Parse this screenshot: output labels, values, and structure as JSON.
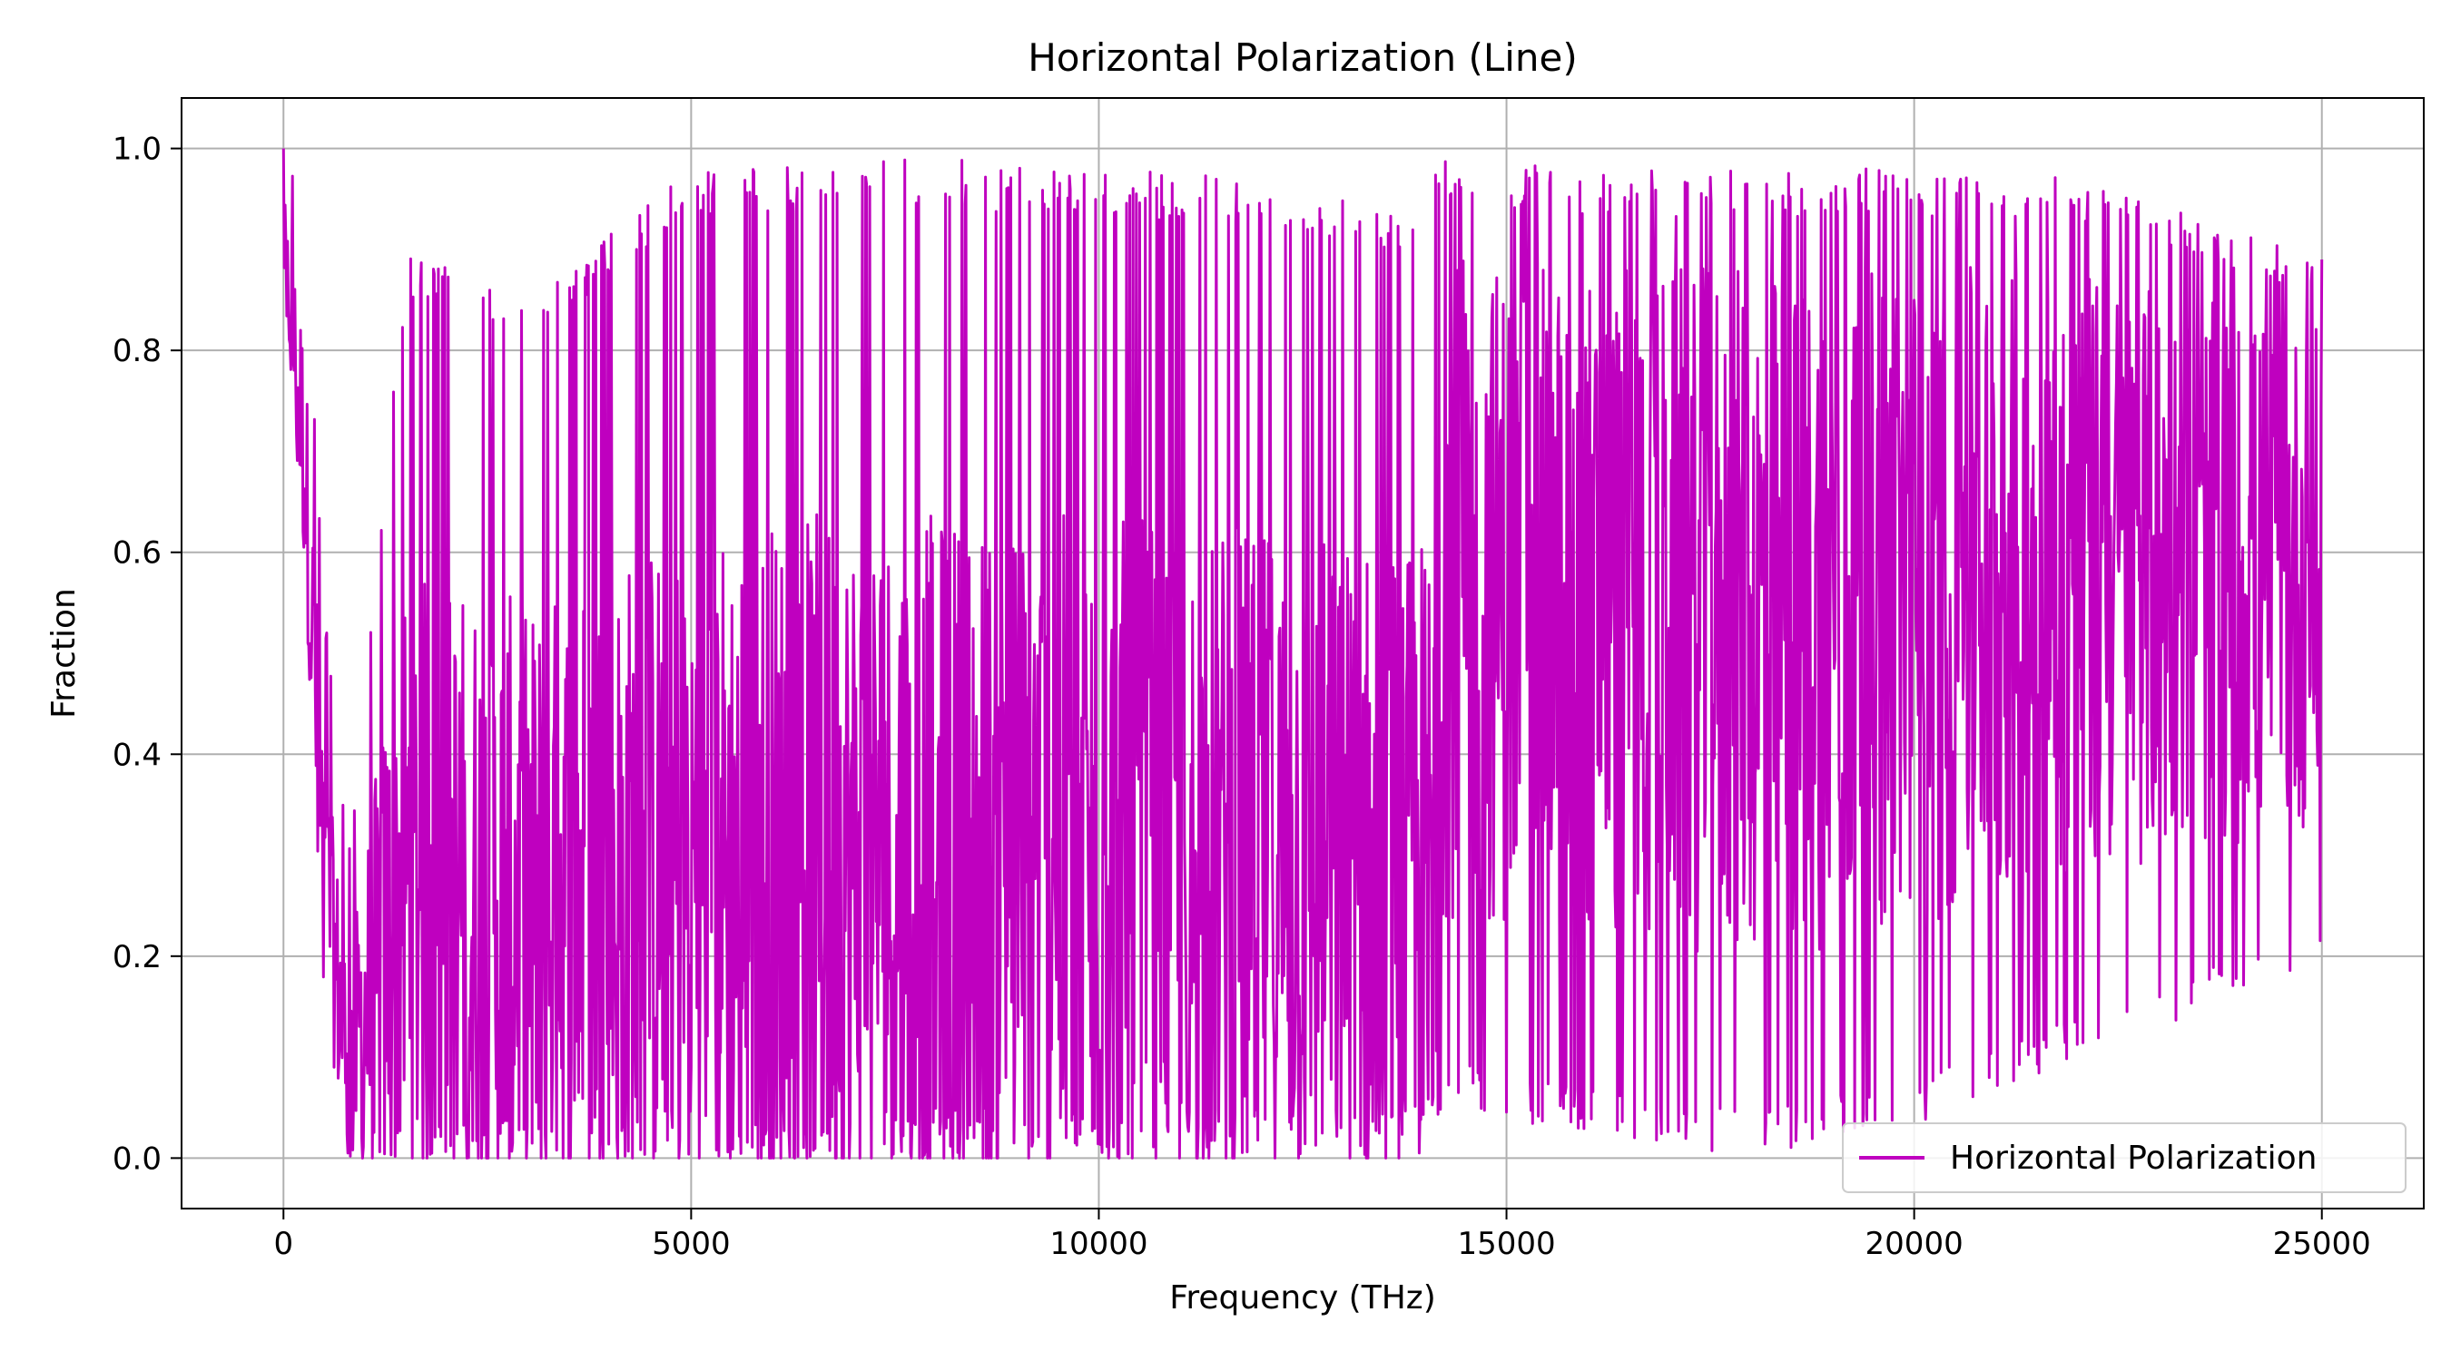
{
  "chart_data": {
    "type": "line",
    "title": "Horizontal Polarization (Line)",
    "xlabel": "Frequency (THz)",
    "ylabel": "Fraction",
    "xlim": [
      -1250,
      26250
    ],
    "ylim": [
      -0.05,
      1.05
    ],
    "xticks": [
      0,
      5000,
      10000,
      15000,
      20000,
      25000
    ],
    "yticks": [
      0.0,
      0.2,
      0.4,
      0.6,
      0.8,
      1.0
    ],
    "ytick_labels": [
      "0.0",
      "0.2",
      "0.4",
      "0.6",
      "0.8",
      "1.0"
    ],
    "grid": true,
    "legend_position": "bottom-right",
    "series": [
      {
        "name": "Horizontal Polarization",
        "color": "#bf00bf",
        "x_range": [
          0,
          25000
        ],
        "start_value": 1.0,
        "end_value": 0.89,
        "envelope": [
          {
            "x": 0,
            "min": 0.87,
            "max": 1.0
          },
          {
            "x": 250,
            "min": 0.6,
            "max": 0.95
          },
          {
            "x": 500,
            "min": 0.15,
            "max": 0.55
          },
          {
            "x": 800,
            "min": 0.0,
            "max": 0.3
          },
          {
            "x": 1500,
            "min": 0.0,
            "max": 0.9
          },
          {
            "x": 3000,
            "min": 0.0,
            "max": 0.85
          },
          {
            "x": 5000,
            "min": 0.0,
            "max": 0.98
          },
          {
            "x": 8000,
            "min": 0.0,
            "max": 0.99
          },
          {
            "x": 10000,
            "min": 0.0,
            "max": 0.98
          },
          {
            "x": 12000,
            "min": 0.0,
            "max": 0.97
          },
          {
            "x": 13900,
            "min": 0.0,
            "max": 0.94
          },
          {
            "x": 14200,
            "min": 0.05,
            "max": 0.99
          },
          {
            "x": 16000,
            "min": 0.02,
            "max": 0.98
          },
          {
            "x": 18000,
            "min": 0.0,
            "max": 0.98
          },
          {
            "x": 20000,
            "min": 0.03,
            "max": 0.98
          },
          {
            "x": 22000,
            "min": 0.1,
            "max": 0.97
          },
          {
            "x": 25000,
            "min": 0.19,
            "max": 0.89
          }
        ]
      }
    ]
  }
}
